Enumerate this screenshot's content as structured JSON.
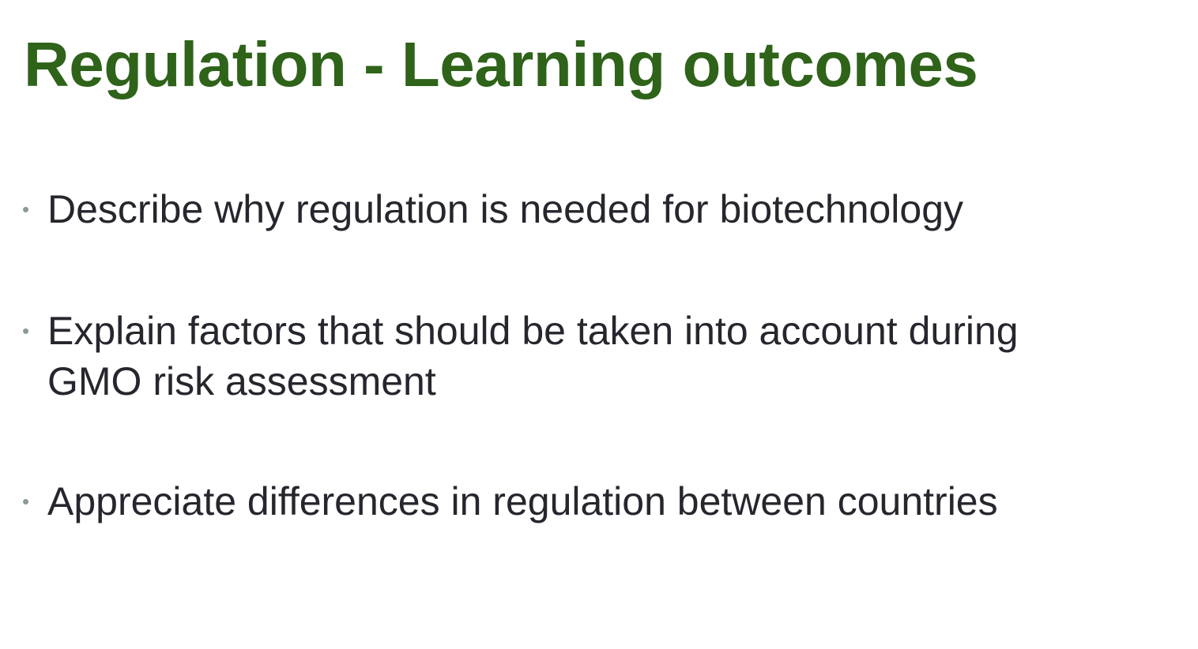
{
  "slide": {
    "title": "Regulation - Learning outcomes",
    "bullet_symbol": "•",
    "bullets": [
      {
        "text": "Describe why regulation is needed for biotechnology"
      },
      {
        "text": "Explain factors that should be taken into account during GMO risk assessment"
      },
      {
        "text": "Appreciate differences in regulation between countries"
      }
    ],
    "colors": {
      "title": "#2e6319",
      "body_text": "#26262e",
      "bullet": "#8c9b98",
      "background": "#ffffff"
    }
  }
}
